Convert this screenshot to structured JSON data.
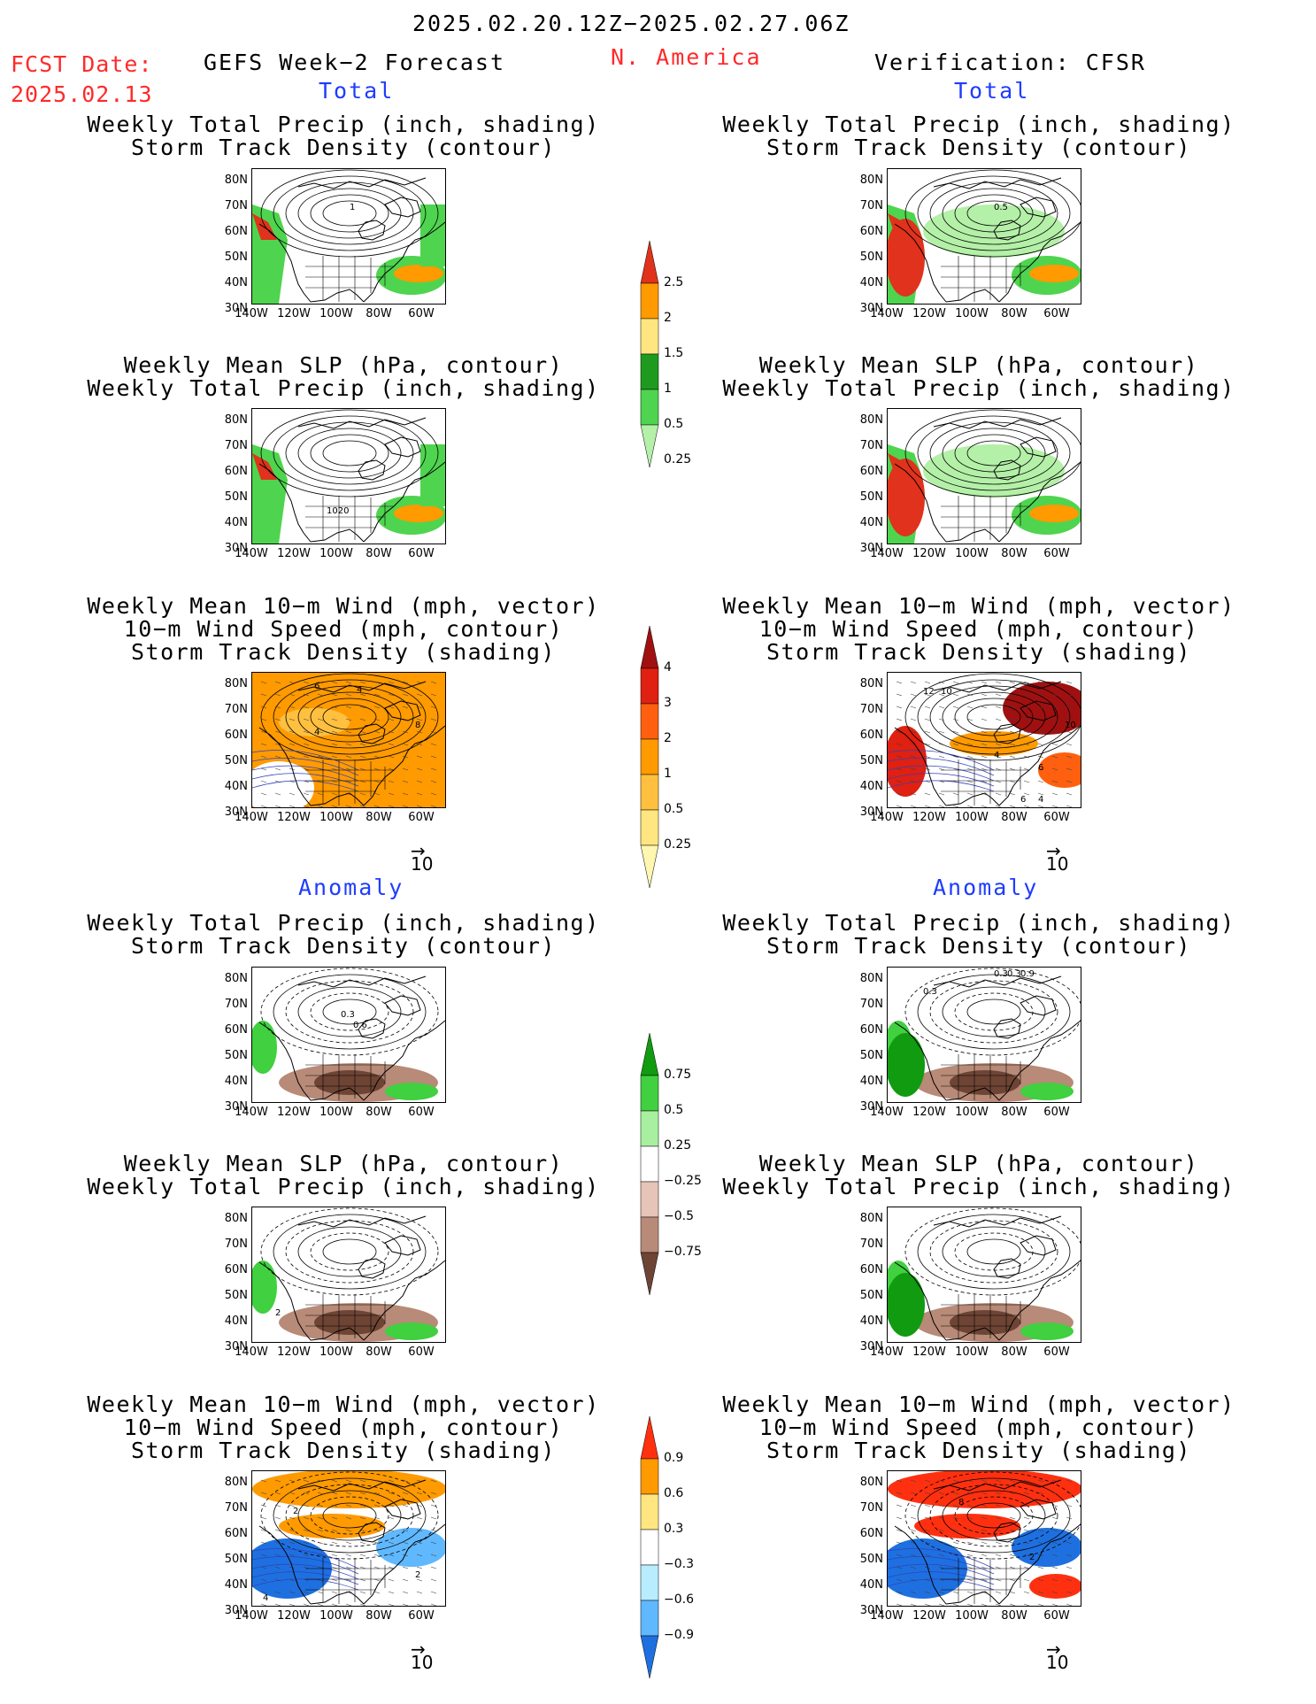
{
  "header": {
    "date_range": "2025.02.20.12Z−2025.02.27.06Z",
    "fcst_label": "FCST Date:",
    "fcst_date": "2025.02.13",
    "forecast_title": "GEFS Week−2 Forecast",
    "region": "N. America",
    "verification": "Verification: CFSR"
  },
  "sections": {
    "total": "Total",
    "anomaly": "Anomaly"
  },
  "titles": {
    "precip_track": [
      "Weekly Total Precip (inch, shading)",
      "Storm Track Density (contour)"
    ],
    "slp_precip": [
      "Weekly Mean SLP (hPa, contour)",
      "Weekly Total Precip (inch, shading)"
    ],
    "wind_track": [
      "Weekly Mean 10−m Wind (mph, vector)",
      "10−m Wind Speed (mph, contour)",
      "Storm Track Density (shading)"
    ]
  },
  "axes": {
    "lat_labels": [
      "80N",
      "70N",
      "60N",
      "50N",
      "40N",
      "30N"
    ],
    "lon_labels": [
      "140W",
      "120W",
      "100W",
      "80W",
      "60W"
    ]
  },
  "vector_ref": "10",
  "colorbars": {
    "precip_total": {
      "labels": [
        "2.5",
        "2",
        "1.5",
        "1",
        "0.5",
        "0.25"
      ],
      "colors": [
        "#e0321c",
        "#ff9a00",
        "#ffe680",
        "#1e9b1e",
        "#4fd44f",
        "#b4f0a8"
      ]
    },
    "track_total": {
      "labels": [
        "4",
        "3",
        "2",
        "1",
        "0.5",
        "0.25"
      ],
      "colors": [
        "#a01010",
        "#e02010",
        "#ff6010",
        "#ff9a00",
        "#ffc040",
        "#ffe680",
        "#fff6b0"
      ]
    },
    "precip_anom": {
      "labels": [
        "0.75",
        "0.5",
        "0.25",
        "−0.25",
        "−0.5",
        "−0.75"
      ],
      "colors": [
        "#109b10",
        "#40d040",
        "#a8f0a0",
        "#ffffff",
        "#e6c4b8",
        "#b88a78",
        "#6e4434"
      ]
    },
    "track_anom": {
      "labels": [
        "0.9",
        "0.6",
        "0.3",
        "−0.3",
        "−0.6",
        "−0.9"
      ],
      "colors": [
        "#ff3010",
        "#ff9a00",
        "#ffe680",
        "#ffffff",
        "#b8ecff",
        "#60b8ff",
        "#1e70e0"
      ]
    }
  },
  "contour_labels": {
    "gefs_total_track": "1",
    "cfsr_total_track": "0.5",
    "gefs_total_slp": "1020",
    "gefs_total_wind": [
      "6",
      "4",
      "8",
      "4"
    ],
    "cfsr_total_wind": [
      "12",
      "10",
      "10",
      "4",
      "6",
      "4",
      "6"
    ],
    "gefs_anom_track": [
      "0.3",
      "0.6"
    ],
    "cfsr_anom_track": [
      "0.3",
      "0.3",
      "0.9",
      "0.3"
    ],
    "gefs_anom_slp": "2",
    "gefs_anom_wind": [
      "2",
      "2",
      "4"
    ],
    "cfsr_anom_wind": [
      "8",
      "2"
    ]
  }
}
